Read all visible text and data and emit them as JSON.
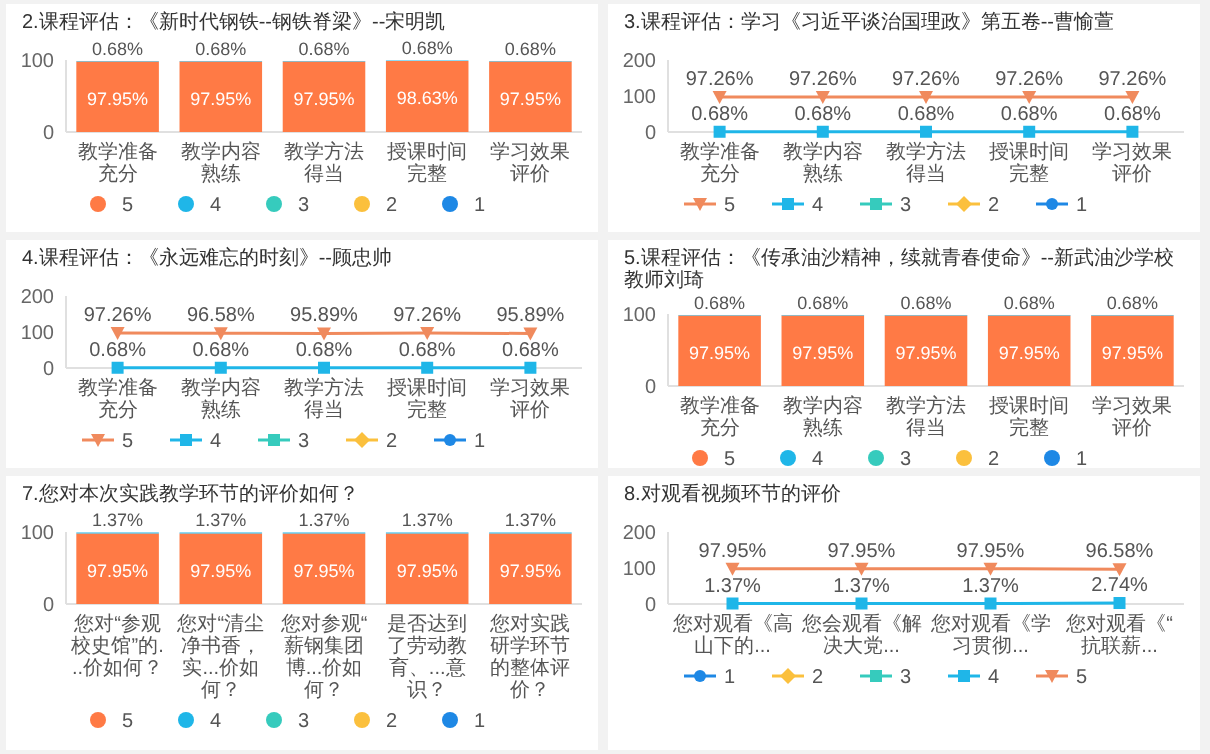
{
  "chart_data": [
    {
      "type": "bar",
      "stacked": true,
      "title": "2.课程评估：《新时代钢铁--钢铁脊梁》--宋明凯",
      "categories": [
        "教学准备充分",
        "教学内容熟练",
        "教学方法得当",
        "授课时间完整",
        "学习效果评价"
      ],
      "ylim": [
        0,
        100
      ],
      "yticks": [
        0,
        100
      ],
      "grid": false,
      "legend": "bottom",
      "series": [
        {
          "name": "5",
          "color": "#ff7a45",
          "values": [
            97.95,
            97.95,
            97.95,
            98.63,
            97.95
          ],
          "value_labels": [
            "97.95%",
            "97.95%",
            "97.95%",
            "98.63%",
            "97.95%"
          ]
        },
        {
          "name": "4",
          "color": "#1fb6e8",
          "values": [
            0.68,
            0.68,
            0.68,
            0.68,
            0.68
          ],
          "value_labels": [
            "0.68%",
            "0.68%",
            "0.68%",
            "0.68%",
            "0.68%"
          ]
        },
        {
          "name": "3",
          "color": "#36cbbd",
          "values": [
            null,
            null,
            null,
            null,
            null
          ]
        },
        {
          "name": "2",
          "color": "#fbc03d",
          "values": [
            null,
            null,
            null,
            null,
            null
          ]
        },
        {
          "name": "1",
          "color": "#1e88e5",
          "values": [
            null,
            null,
            null,
            null,
            null
          ]
        }
      ]
    },
    {
      "type": "line",
      "title": "3.课程评估：学习《习近平谈治国理政》第五卷--曹愉萱",
      "categories": [
        "教学准备充分",
        "教学内容熟练",
        "教学方法得当",
        "授课时间完整",
        "学习效果评价"
      ],
      "ylim": [
        0,
        200
      ],
      "yticks": [
        0,
        100,
        200
      ],
      "grid": false,
      "legend": "bottom",
      "series": [
        {
          "name": "5",
          "color": "#f08a5d",
          "marker": "triangle",
          "values": [
            97.26,
            97.26,
            97.26,
            97.26,
            97.26
          ],
          "value_labels": [
            "97.26%",
            "97.26%",
            "97.26%",
            "97.26%",
            "97.26%"
          ]
        },
        {
          "name": "4",
          "color": "#1fb6e8",
          "marker": "square",
          "values": [
            0.68,
            0.68,
            0.68,
            0.68,
            0.68
          ],
          "value_labels": [
            "0.68%",
            "0.68%",
            "0.68%",
            "0.68%",
            "0.68%"
          ]
        },
        {
          "name": "3",
          "color": "#36cbbd",
          "marker": "square",
          "values": [
            null,
            null,
            null,
            null,
            null
          ]
        },
        {
          "name": "2",
          "color": "#fbc03d",
          "marker": "diamond",
          "values": [
            null,
            null,
            null,
            null,
            null
          ]
        },
        {
          "name": "1",
          "color": "#1e88e5",
          "marker": "circle",
          "values": [
            null,
            null,
            null,
            null,
            null
          ]
        }
      ]
    },
    {
      "type": "line",
      "title": "4.课程评估：《永远难忘的时刻》--顾忠帅",
      "categories": [
        "教学准备充分",
        "教学内容熟练",
        "教学方法得当",
        "授课时间完整",
        "学习效果评价"
      ],
      "ylim": [
        0,
        200
      ],
      "yticks": [
        0,
        100,
        200
      ],
      "grid": false,
      "legend": "bottom",
      "series": [
        {
          "name": "5",
          "color": "#f08a5d",
          "marker": "triangle",
          "values": [
            97.26,
            96.58,
            95.89,
            97.26,
            95.89
          ],
          "value_labels": [
            "97.26%",
            "96.58%",
            "95.89%",
            "97.26%",
            "95.89%"
          ]
        },
        {
          "name": "4",
          "color": "#1fb6e8",
          "marker": "square",
          "values": [
            0.68,
            0.68,
            0.68,
            0.68,
            0.68
          ],
          "value_labels": [
            "0.68%",
            "0.68%",
            "0.68%",
            "0.68%",
            "0.68%"
          ]
        },
        {
          "name": "3",
          "color": "#36cbbd",
          "marker": "square",
          "values": [
            null,
            null,
            null,
            null,
            null
          ]
        },
        {
          "name": "2",
          "color": "#fbc03d",
          "marker": "diamond",
          "values": [
            null,
            null,
            null,
            null,
            null
          ]
        },
        {
          "name": "1",
          "color": "#1e88e5",
          "marker": "circle",
          "values": [
            null,
            null,
            null,
            null,
            null
          ]
        }
      ]
    },
    {
      "type": "bar",
      "stacked": true,
      "title": "5.课程评估：《传承油沙精神，续就青春使命》--新武油沙学校教师刘琦",
      "categories": [
        "教学准备充分",
        "教学内容熟练",
        "教学方法得当",
        "授课时间完整",
        "学习效果评价"
      ],
      "ylim": [
        0,
        100
      ],
      "yticks": [
        0,
        100
      ],
      "grid": false,
      "legend": "bottom",
      "series": [
        {
          "name": "5",
          "color": "#ff7a45",
          "values": [
            97.95,
            97.95,
            97.95,
            97.95,
            97.95
          ],
          "value_labels": [
            "97.95%",
            "97.95%",
            "97.95%",
            "97.95%",
            "97.95%"
          ]
        },
        {
          "name": "4",
          "color": "#1fb6e8",
          "values": [
            0.68,
            0.68,
            0.68,
            0.68,
            0.68
          ],
          "value_labels": [
            "0.68%",
            "0.68%",
            "0.68%",
            "0.68%",
            "0.68%"
          ]
        },
        {
          "name": "3",
          "color": "#36cbbd",
          "values": [
            null,
            null,
            null,
            null,
            null
          ]
        },
        {
          "name": "2",
          "color": "#fbc03d",
          "values": [
            null,
            null,
            null,
            null,
            null
          ]
        },
        {
          "name": "1",
          "color": "#1e88e5",
          "values": [
            null,
            null,
            null,
            null,
            null
          ]
        }
      ]
    },
    {
      "type": "bar",
      "stacked": true,
      "title": "7.您对本次实践教学环节的评价如何？",
      "categories": [
        "您对“参观校史馆”的...价如何？",
        "您对“清尘净书香，实...价如何？",
        "您对参观“薪钢集团博...价如何？",
        "是否达到了劳动教育、...意识？",
        "您对实践研学环节的整体评价？"
      ],
      "ylim": [
        0,
        100
      ],
      "yticks": [
        0,
        100
      ],
      "grid": false,
      "legend": "bottom",
      "series": [
        {
          "name": "5",
          "color": "#ff7a45",
          "values": [
            97.95,
            97.95,
            97.95,
            97.95,
            97.95
          ],
          "value_labels": [
            "97.95%",
            "97.95%",
            "97.95%",
            "97.95%",
            "97.95%"
          ]
        },
        {
          "name": "4",
          "color": "#1fb6e8",
          "values": [
            1.37,
            1.37,
            1.37,
            1.37,
            1.37
          ],
          "value_labels": [
            "1.37%",
            "1.37%",
            "1.37%",
            "1.37%",
            "1.37%"
          ]
        },
        {
          "name": "3",
          "color": "#36cbbd",
          "values": [
            null,
            null,
            null,
            null,
            null
          ]
        },
        {
          "name": "2",
          "color": "#fbc03d",
          "values": [
            null,
            null,
            null,
            null,
            null
          ]
        },
        {
          "name": "1",
          "color": "#1e88e5",
          "values": [
            null,
            null,
            null,
            null,
            null
          ]
        }
      ]
    },
    {
      "type": "line",
      "title": "8.对观看视频环节的评价",
      "categories": [
        "您对观看《高山下的...",
        "您会观看《解决大党...",
        "您对观看《学习贯彻...",
        "您对观看《“抗联薪..."
      ],
      "ylim": [
        0,
        200
      ],
      "yticks": [
        0,
        100,
        200
      ],
      "grid": false,
      "legend": "bottom",
      "series": [
        {
          "name": "1",
          "color": "#1e88e5",
          "marker": "circle",
          "values": [
            null,
            null,
            null,
            null
          ]
        },
        {
          "name": "2",
          "color": "#fbc03d",
          "marker": "diamond",
          "values": [
            null,
            null,
            null,
            null
          ]
        },
        {
          "name": "3",
          "color": "#36cbbd",
          "marker": "square",
          "values": [
            null,
            null,
            null,
            null
          ]
        },
        {
          "name": "4",
          "color": "#1fb6e8",
          "marker": "square",
          "values": [
            1.37,
            1.37,
            1.37,
            2.74
          ],
          "value_labels": [
            "1.37%",
            "1.37%",
            "1.37%",
            "2.74%"
          ]
        },
        {
          "name": "5",
          "color": "#f08a5d",
          "marker": "triangle",
          "values": [
            97.95,
            97.95,
            97.95,
            96.58
          ],
          "value_labels": [
            "97.95%",
            "97.95%",
            "97.95%",
            "96.58%"
          ]
        }
      ]
    }
  ]
}
